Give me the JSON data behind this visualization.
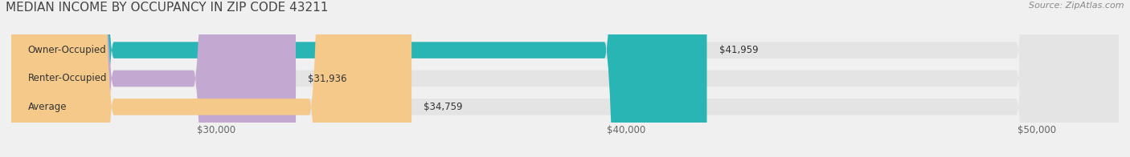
{
  "title": "MEDIAN INCOME BY OCCUPANCY IN ZIP CODE 43211",
  "source": "Source: ZipAtlas.com",
  "categories": [
    "Owner-Occupied",
    "Renter-Occupied",
    "Average"
  ],
  "values": [
    41959,
    31936,
    34759
  ],
  "bar_colors": [
    "#2ab5b5",
    "#c3a8d1",
    "#f5c98a"
  ],
  "value_labels": [
    "$41,959",
    "$31,936",
    "$34,759"
  ],
  "xlim": [
    25000,
    52000
  ],
  "xticks": [
    30000,
    40000,
    50000
  ],
  "xticklabels": [
    "$30,000",
    "$40,000",
    "$50,000"
  ],
  "background_color": "#f0f0f0",
  "bar_background_color": "#e4e4e4",
  "title_fontsize": 11,
  "source_fontsize": 8,
  "label_fontsize": 8.5,
  "tick_fontsize": 8.5,
  "bar_height": 0.58,
  "figsize": [
    14.06,
    1.96
  ],
  "dpi": 100
}
